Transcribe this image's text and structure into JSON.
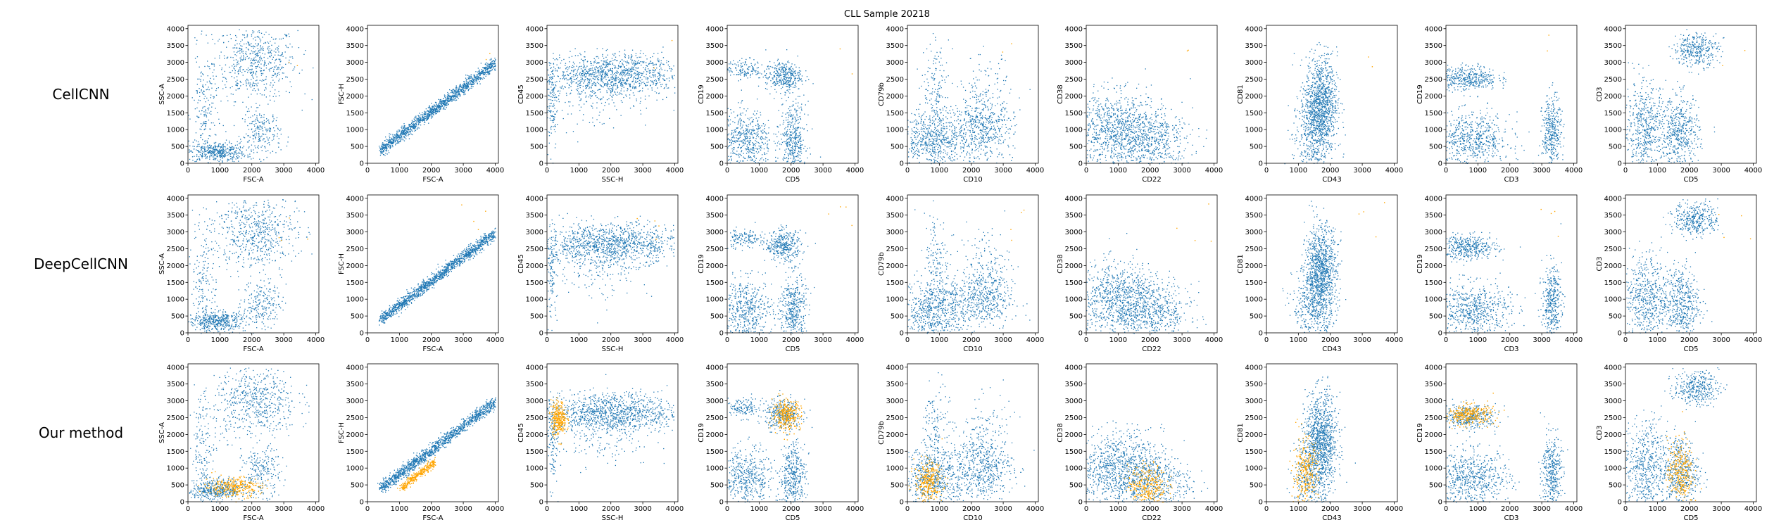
{
  "figure": {
    "title": "CLL Sample 20218",
    "row_labels": [
      "CellCNN",
      "DeepCellCNN",
      "Our method"
    ]
  },
  "colors": {
    "population": "#1f77b4",
    "selected": "#ffa500",
    "axes": "#000000"
  },
  "chart_data": {
    "type": "scatter",
    "title": "CLL Sample 20218",
    "grid": false,
    "xlim": [
      0,
      4100
    ],
    "ylim": [
      0,
      4100
    ],
    "xticks": [
      0,
      1000,
      2000,
      3000,
      4000
    ],
    "yticks": [
      0,
      500,
      1000,
      1500,
      2000,
      2500,
      3000,
      3500,
      4000
    ],
    "rows": [
      "CellCNN",
      "DeepCellCNN",
      "Our method"
    ],
    "panels": [
      {
        "xlabel": "FSC-A",
        "ylabel": "SSC-A"
      },
      {
        "xlabel": "FSC-A",
        "ylabel": "FSC-H"
      },
      {
        "xlabel": "SSC-H",
        "ylabel": "CD45"
      },
      {
        "xlabel": "CD5",
        "ylabel": "CD19"
      },
      {
        "xlabel": "CD10",
        "ylabel": "CD79b"
      },
      {
        "xlabel": "CD22",
        "ylabel": "CD38"
      },
      {
        "xlabel": "CD43",
        "ylabel": "CD81"
      },
      {
        "xlabel": "CD3",
        "ylabel": "CD19"
      },
      {
        "xlabel": "CD5",
        "ylabel": "CD3"
      }
    ],
    "population_clusters": [
      [
        {
          "cx": 2100,
          "cy": 3000,
          "sx": 650,
          "sy": 550,
          "w": 0.42
        },
        {
          "cx": 900,
          "cy": 350,
          "sx": 450,
          "sy": 150,
          "w": 0.3
        },
        {
          "cx": 2300,
          "cy": 900,
          "sx": 300,
          "sy": 350,
          "w": 0.15
        },
        {
          "cx": 500,
          "cy": 1500,
          "sx": 200,
          "sy": 900,
          "w": 0.13
        }
      ],
      [
        {
          "line": true,
          "x0": 400,
          "x1": 4000,
          "y0": 400,
          "slope": 0.72,
          "spread": 90,
          "w": 1.0
        }
      ],
      [
        {
          "cx": 2000,
          "cy": 2650,
          "sx": 1100,
          "sy": 300,
          "w": 0.8
        },
        {
          "cx": 150,
          "cy": 1800,
          "sx": 80,
          "sy": 700,
          "w": 0.08
        },
        {
          "cx": 1500,
          "cy": 2000,
          "sx": 900,
          "sy": 500,
          "w": 0.12
        }
      ],
      [
        {
          "cx": 1750,
          "cy": 2600,
          "sx": 280,
          "sy": 220,
          "w": 0.25
        },
        {
          "cx": 500,
          "cy": 2800,
          "sx": 300,
          "sy": 150,
          "w": 0.1
        },
        {
          "cx": 600,
          "cy": 700,
          "sx": 400,
          "sy": 450,
          "w": 0.35
        },
        {
          "cx": 2050,
          "cy": 700,
          "sx": 200,
          "sy": 550,
          "w": 0.3
        }
      ],
      [
        {
          "cx": 800,
          "cy": 700,
          "sx": 500,
          "sy": 450,
          "w": 0.45
        },
        {
          "cx": 2300,
          "cy": 1000,
          "sx": 500,
          "sy": 450,
          "w": 0.35
        },
        {
          "cx": 900,
          "cy": 2200,
          "sx": 200,
          "sy": 700,
          "w": 0.1
        },
        {
          "cx": 2400,
          "cy": 2000,
          "sx": 400,
          "sy": 600,
          "w": 0.1
        }
      ],
      [
        {
          "cx": 1000,
          "cy": 1000,
          "sx": 700,
          "sy": 550,
          "w": 0.7
        },
        {
          "cx": 2100,
          "cy": 600,
          "sx": 600,
          "sy": 450,
          "w": 0.3
        }
      ],
      [
        {
          "cx": 1700,
          "cy": 1800,
          "sx": 250,
          "sy": 700,
          "w": 0.75
        },
        {
          "cx": 1400,
          "cy": 800,
          "sx": 300,
          "sy": 600,
          "w": 0.25
        }
      ],
      [
        {
          "cx": 700,
          "cy": 2550,
          "sx": 450,
          "sy": 180,
          "w": 0.28
        },
        {
          "cx": 800,
          "cy": 700,
          "sx": 600,
          "sy": 400,
          "w": 0.45
        },
        {
          "cx": 3300,
          "cy": 900,
          "sx": 150,
          "sy": 550,
          "w": 0.27
        }
      ],
      [
        {
          "cx": 2200,
          "cy": 3400,
          "sx": 350,
          "sy": 250,
          "w": 0.25
        },
        {
          "cx": 600,
          "cy": 1000,
          "sx": 350,
          "sy": 700,
          "w": 0.4
        },
        {
          "cx": 1700,
          "cy": 900,
          "sx": 300,
          "sy": 550,
          "w": 0.35
        }
      ]
    ],
    "selected_clusters": [
      {
        "cx": 1400,
        "cy": 450,
        "sx": 450,
        "sy": 150
      },
      {
        "line": true,
        "x0": 1000,
        "x1": 2100,
        "y0": 400,
        "slope": 0.72,
        "spread": 60
      },
      {
        "cx": 350,
        "cy": 2500,
        "sx": 120,
        "sy": 250
      },
      {
        "cx": 1850,
        "cy": 2600,
        "sx": 220,
        "sy": 220
      },
      {
        "cx": 650,
        "cy": 600,
        "sx": 220,
        "sy": 300
      },
      {
        "cx": 1900,
        "cy": 500,
        "sx": 300,
        "sy": 300
      },
      {
        "cx": 1200,
        "cy": 800,
        "sx": 200,
        "sy": 550
      },
      {
        "cx": 700,
        "cy": 2600,
        "sx": 400,
        "sy": 150
      },
      {
        "cx": 1700,
        "cy": 900,
        "sx": 200,
        "sy": 500
      }
    ],
    "selected_points_per_row": [
      2,
      4,
      300
    ]
  }
}
